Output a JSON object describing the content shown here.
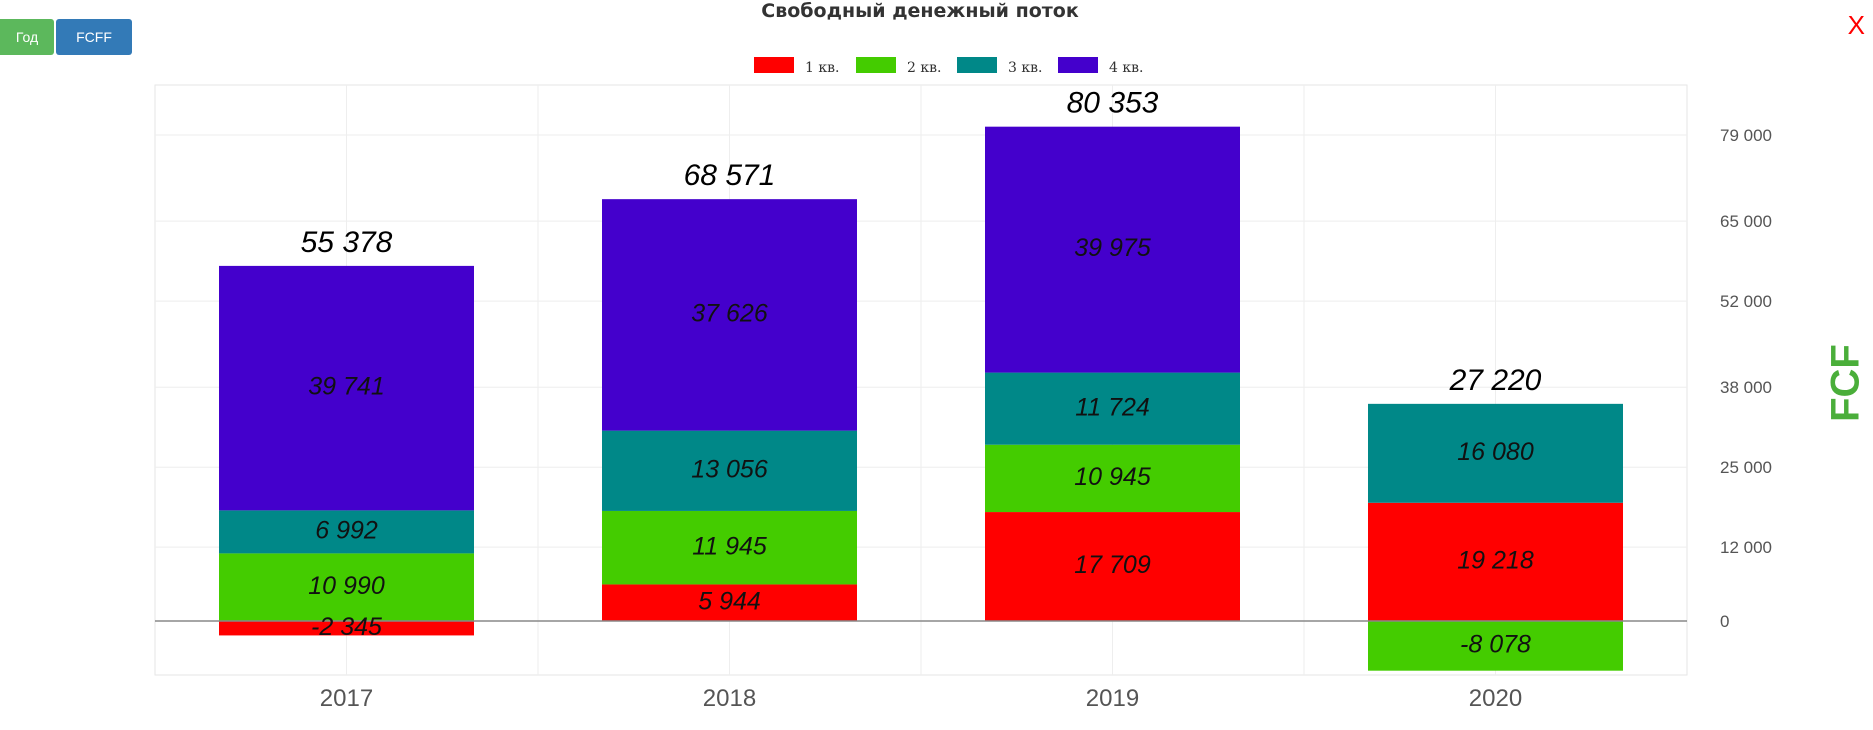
{
  "buttons": {
    "year_label": "Год",
    "fcff_label": "FCFF"
  },
  "title": "Свободный денежный поток",
  "close_label": "X",
  "y_axis_label": "FCF",
  "chart_data": {
    "type": "bar",
    "stacked": true,
    "title": "Свободный денежный поток",
    "ylabel": "FCF",
    "categories": [
      "2017",
      "2018",
      "2019",
      "2020"
    ],
    "series": [
      {
        "name": "1 кв.",
        "color": "#ff0000",
        "values": [
          -2345,
          5944,
          17709,
          19218
        ],
        "labels": [
          "-2 345",
          "5 944",
          "17 709",
          "19 218"
        ]
      },
      {
        "name": "2 кв.",
        "color": "#44cc00",
        "values": [
          10990,
          11945,
          10945,
          -8078
        ],
        "labels": [
          "10 990",
          "11 945",
          "10 945",
          "-8 078"
        ]
      },
      {
        "name": "3 кв.",
        "color": "#008888",
        "values": [
          6992,
          13056,
          11724,
          16080
        ],
        "labels": [
          "6 992",
          "13 056",
          "11 724",
          "16 080"
        ]
      },
      {
        "name": "4 кв.",
        "color": "#4400cc",
        "values": [
          39741,
          37626,
          39975,
          null
        ],
        "labels": [
          "39 741",
          "37 626",
          "39 975",
          null
        ]
      }
    ],
    "totals": [
      "55 378",
      "68 571",
      "80 353",
      "27 220"
    ],
    "y_ticks": [
      0,
      12000,
      25000,
      38000,
      52000,
      65000,
      79000
    ],
    "y_tick_labels": [
      "0",
      "12 000",
      "25 000",
      "38 000",
      "52 000",
      "65 000",
      "79 000"
    ],
    "ylim": [
      -9000,
      88000
    ],
    "legend_position": "top-center",
    "grid": true
  }
}
